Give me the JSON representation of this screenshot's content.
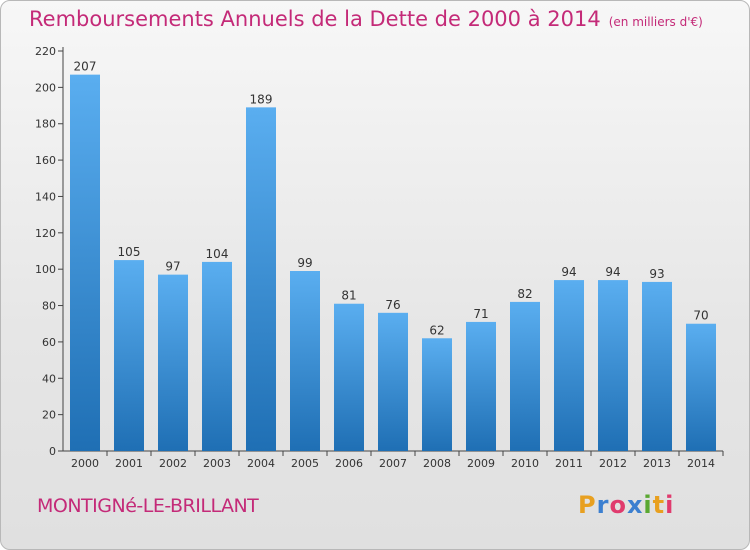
{
  "header": {
    "title": "Remboursements Annuels de la Dette de 2000 à 2014",
    "unit": "(en milliers d'€)"
  },
  "footer": {
    "commune": "MONTIGNé-LE-BRILLANT",
    "logo_text": "Proxiti"
  },
  "colors": {
    "title": "#c42a78",
    "bar_top": "#5aaef0",
    "bar_bottom": "#1f6fb4",
    "logo_letters": [
      "#e8a020",
      "#3b7fd0",
      "#e03b6e",
      "#3b7fd0",
      "#5aa832",
      "#e8a020",
      "#e03b6e"
    ]
  },
  "chart_data": {
    "type": "bar",
    "title": "Remboursements Annuels de la Dette de 2000 à 2014",
    "subtitle": "(en milliers d'€)",
    "categories": [
      "2000",
      "2001",
      "2002",
      "2003",
      "2004",
      "2005",
      "2006",
      "2007",
      "2008",
      "2009",
      "2010",
      "2011",
      "2012",
      "2013",
      "2014"
    ],
    "values": [
      207,
      105,
      97,
      104,
      189,
      99,
      81,
      76,
      62,
      71,
      82,
      94,
      94,
      93,
      70
    ],
    "ylim": [
      0,
      220
    ],
    "yticks": [
      0,
      20,
      40,
      60,
      80,
      100,
      120,
      140,
      160,
      180,
      200,
      220
    ],
    "grid": false,
    "data_labels": true
  }
}
